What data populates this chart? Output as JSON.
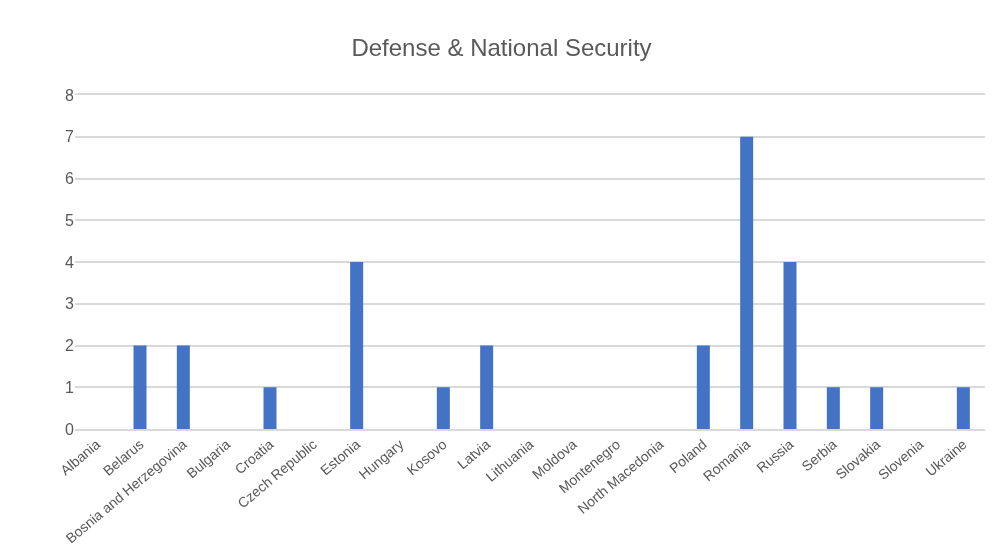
{
  "chart_data": {
    "type": "bar",
    "title": "Defense & National Security",
    "categories": [
      "Albania",
      "Belarus",
      "Bosnia and Herzegovina",
      "Bulgaria",
      "Croatia",
      "Czech Republic",
      "Estonia",
      "Hungary",
      "Kosovo",
      "Latvia",
      "Lithuania",
      "Moldova",
      "Montenegro",
      "North Macedonia",
      "Poland",
      "Romania",
      "Russia",
      "Serbia",
      "Slovakia",
      "Slovenia",
      "Ukraine"
    ],
    "values": [
      0,
      2,
      2,
      0,
      1,
      0,
      4,
      0,
      1,
      2,
      0,
      0,
      0,
      0,
      2,
      7,
      4,
      1,
      1,
      0,
      1
    ],
    "color": "#4472c4",
    "ylim": [
      0,
      8
    ],
    "yticks": [
      0,
      1,
      2,
      3,
      4,
      5,
      6,
      7,
      8
    ],
    "grid": "y"
  }
}
